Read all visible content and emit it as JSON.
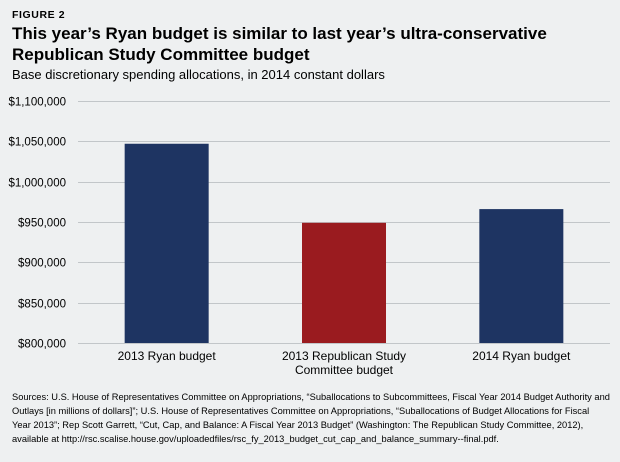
{
  "figure_label": "FIGURE 2",
  "chart_data": {
    "type": "bar",
    "title": "This year’s Ryan budget is similar to last year’s ultra-conservative Republican Study Committee budget",
    "subtitle": "Base discretionary spending allocations, in 2014 constant dollars",
    "categories": [
      "2013 Ryan budget",
      "2013 Republican Study Committee budget",
      "2014 Ryan budget"
    ],
    "category_lines": [
      [
        "2013 Ryan budget"
      ],
      [
        "2013 Republican Study",
        "Committee budget"
      ],
      [
        "2014 Ryan budget"
      ]
    ],
    "values": [
      1047000,
      949000,
      966000
    ],
    "colors": [
      "#1e3462",
      "#9a1b1f",
      "#1e3462"
    ],
    "ylim": [
      800000,
      1100000
    ],
    "yticks": [
      800000,
      850000,
      900000,
      950000,
      1000000,
      1050000,
      1100000
    ],
    "ytick_labels": [
      "$800,000",
      "$850,000",
      "$900,000",
      "$950,000",
      "$1,000,000",
      "$1,050,000",
      "$1,100,000"
    ],
    "xlabel": "",
    "ylabel": "",
    "grid": true,
    "gridline_color": "#c2c6c9"
  },
  "sources": "Sources: U.S. House of Representatives Committee on Appropriations, “Suballocations to Subcommittees, Fiscal Year 2014 Budget Authority and Outlays [in millions of dollars]”; U.S. House of Representatives Committee on Appropriations, “Suballocations of Budget Allocations for Fiscal Year 2013”; Rep Scott Garrett, “Cut, Cap, and Balance: A Fiscal Year 2013 Budget” (Washington: The Republican Study Committee, 2012), available at http://rsc.scalise.house.gov/uploadedfiles/rsc_fy_2013_budget_cut_cap_and_balance_summary--final.pdf."
}
